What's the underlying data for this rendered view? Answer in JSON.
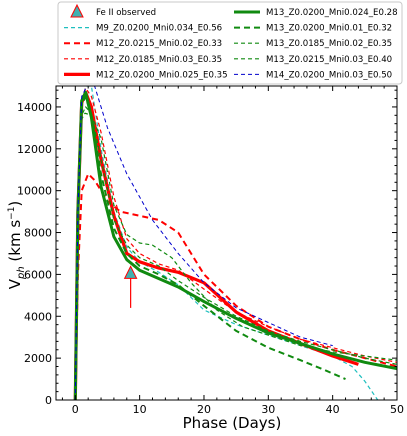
{
  "chart_data": {
    "type": "line",
    "xlabel": "Phase (Days)",
    "ylabel_main": "V",
    "ylabel_sub": "ph",
    "ylabel_units": " (km s",
    "ylabel_exp": "−1",
    "ylabel_close": ")",
    "xlim": [
      -3,
      50
    ],
    "ylim": [
      0,
      15000
    ],
    "xticks": [
      0,
      10,
      20,
      30,
      40,
      50
    ],
    "yticks": [
      0,
      2000,
      4000,
      6000,
      8000,
      10000,
      12000,
      14000
    ],
    "grid": false,
    "legend_position": "top",
    "observed": {
      "name": "Fe II observed",
      "x": 8.6,
      "y": 6050,
      "y_low": 4400,
      "color": "#ff0000",
      "marker_color": "#40b0b0"
    },
    "series": [
      {
        "name": "M9_Z0.0200_Mni0.034_E0.56",
        "color": "#1fbfbf",
        "width": 1.2,
        "dash": "4,3",
        "x": [
          0,
          0.4,
          1,
          1.6,
          2.5,
          4,
          6,
          8,
          10,
          13,
          16,
          20,
          25,
          30,
          35,
          40,
          43,
          45,
          47
        ],
        "y": [
          0,
          9000,
          14000,
          15000,
          15000,
          12000,
          9000,
          7300,
          6600,
          6100,
          5500,
          4300,
          3600,
          3100,
          2600,
          2100,
          1600,
          900,
          0
        ]
      },
      {
        "name": "M12_Z0.0215_Mni0.02_E0.33",
        "color": "#ff0000",
        "width": 2.0,
        "dash": "6,4",
        "x": [
          0,
          0.4,
          1,
          2,
          3,
          5,
          7,
          10,
          13,
          16,
          20,
          25,
          30,
          35,
          40,
          45,
          50
        ],
        "y": [
          0,
          6000,
          10000,
          10800,
          10500,
          9500,
          9000,
          8800,
          8600,
          8000,
          6000,
          4500,
          3500,
          2900,
          2400,
          2000,
          1600
        ]
      },
      {
        "name": "M12_Z0.0185_Mni0.03_E0.35",
        "color": "#ff0000",
        "width": 1.2,
        "dash": "4,3",
        "x": [
          0,
          0.4,
          1,
          1.6,
          2.5,
          4,
          6,
          8,
          10,
          13,
          16,
          20,
          25,
          30,
          35,
          40,
          45,
          50
        ],
        "y": [
          0,
          9000,
          14300,
          14900,
          14500,
          12800,
          9700,
          7700,
          7000,
          6500,
          6200,
          5300,
          4200,
          3500,
          2900,
          2500,
          2100,
          1800
        ]
      },
      {
        "name": "M12_Z0.0200_Mni0.025_E0.35",
        "color": "#ff0000",
        "width": 3.2,
        "dash": "",
        "x": [
          0,
          0.4,
          1,
          1.6,
          2.5,
          4,
          6,
          8,
          10,
          13,
          16,
          20,
          25,
          30,
          35,
          40,
          44
        ],
        "y": [
          0,
          9000,
          14200,
          14700,
          14000,
          11500,
          8800,
          7000,
          6600,
          6300,
          6100,
          5600,
          4200,
          3300,
          2700,
          2100,
          1700
        ]
      },
      {
        "name": "M13_Z0.0200_Mni0.024_E0.28",
        "color": "#108a10",
        "width": 3.0,
        "dash": "",
        "x": [
          0,
          0.4,
          1,
          1.6,
          2.5,
          4,
          6,
          8,
          10,
          13,
          16,
          20,
          25,
          30,
          35,
          40,
          45,
          50
        ],
        "y": [
          0,
          9000,
          14300,
          14700,
          13500,
          10200,
          7800,
          6700,
          6200,
          5800,
          5400,
          4700,
          3900,
          3200,
          2700,
          2200,
          1800,
          1500
        ]
      },
      {
        "name": "M13_Z0.0200_Mni0.01_E0.32",
        "color": "#108a10",
        "width": 2.0,
        "dash": "6,4",
        "x": [
          0,
          0.4,
          1,
          1.6,
          2.5,
          4,
          6,
          8,
          10,
          13,
          16,
          20,
          25,
          30,
          35,
          39,
          42
        ],
        "y": [
          0,
          9000,
          14100,
          14500,
          13600,
          10800,
          8200,
          7000,
          6400,
          6000,
          5500,
          4500,
          3300,
          2500,
          1900,
          1400,
          1000
        ]
      },
      {
        "name": "M13_Z0.0185_Mni0.02_E0.35",
        "color": "#108a10",
        "width": 1.2,
        "dash": "4,3",
        "x": [
          0,
          0.4,
          1,
          1.6,
          2.5,
          4,
          6,
          8,
          10,
          13,
          16,
          20,
          25,
          30,
          35,
          40,
          45,
          50
        ],
        "y": [
          0,
          9000,
          13600,
          14000,
          13700,
          11500,
          8600,
          7400,
          6800,
          6400,
          5700,
          4900,
          4000,
          3300,
          2800,
          2400,
          2000,
          1700
        ]
      },
      {
        "name": "M13_Z0.0215_Mni0.03_E0.40",
        "color": "#108a10",
        "width": 1.2,
        "dash": "4,3",
        "x": [
          0,
          0.3,
          0.8,
          1.5,
          2.5,
          4,
          6,
          8,
          10,
          12,
          15,
          18,
          22,
          26,
          30,
          35,
          40,
          45,
          50
        ],
        "y": [
          0,
          8000,
          13300,
          13700,
          13600,
          12500,
          9300,
          7900,
          7500,
          7400,
          6800,
          5600,
          4300,
          3500,
          3100,
          2600,
          2300,
          2100,
          1900
        ]
      },
      {
        "name": "M14_Z0.0200_Mni0.03_E0.50",
        "color": "#0000cc",
        "width": 1.0,
        "dash": "4,3",
        "x": [
          0,
          0.4,
          1,
          1.8,
          3,
          5,
          8,
          12,
          16,
          20,
          25,
          30,
          35,
          40
        ],
        "y": [
          0,
          9000,
          14500,
          15000,
          15000,
          13000,
          10800,
          8600,
          7000,
          5600,
          4400,
          3700,
          3000,
          2600
        ]
      }
    ]
  }
}
